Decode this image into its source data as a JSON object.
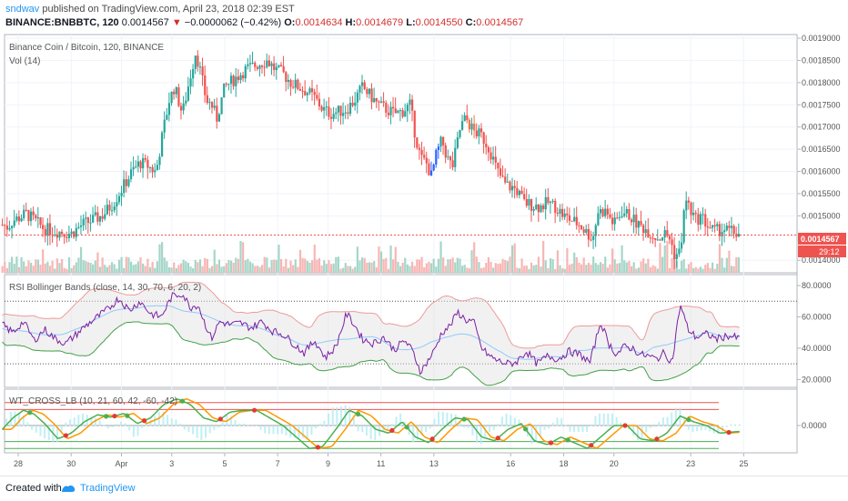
{
  "header": {
    "user": "sndwav",
    "published": " published on TradingView.com, April 23, 2018 02:39 EST",
    "symbol": "BINANCE:BNBBTC, 120",
    "last": "0.0014567",
    "change_arrow": "▼",
    "change": "−0.0000062 (−0.42%)",
    "o_label": "O:",
    "o": "0.0014634",
    "h_label": "H:",
    "h": "0.0014679",
    "l_label": "L:",
    "l": "0.0014550",
    "c_label": "C:",
    "c": "0.0014567"
  },
  "panes": {
    "main_title": "Binance Coin / Bitcoin, 120, BINANCE",
    "vol_title": "Vol (14)",
    "rsi_title": "RSI Bollinger Bands (close, 14, 30, 70, 6, 20, 2)",
    "wt_title": "WT_CROSS_LB (10, 21, 60, 42, -60, -42)",
    "price_tag": "0.0014567",
    "time_tag": "29:12"
  },
  "footer": {
    "created_with": "Created with",
    "brand": "TradingView"
  },
  "colors": {
    "up": "#26a69a",
    "down": "#ef5350",
    "blue_candle": "#2962ff",
    "orange_candle": "#ff7043",
    "rsi_line": "#7b1fa2",
    "bb_upper": "#ef9a9a",
    "bb_lower": "#43a047",
    "wt1": "#4caf50",
    "wt2": "#ff9800",
    "grid": "#f0f3fa"
  },
  "chart_data": [
    {
      "type": "candlestick",
      "pane": "main",
      "title": "Binance Coin / Bitcoin, 120, BINANCE",
      "x_tick_labels": [
        "28",
        "30",
        "Apr",
        "3",
        "5",
        "7",
        "9",
        "11",
        "13",
        "16",
        "18",
        "20",
        "23",
        "25"
      ],
      "y_tick_labels": [
        "0.0019000",
        "0.0018500",
        "0.0018000",
        "0.0017500",
        "0.0017000",
        "0.0016500",
        "0.0016000",
        "0.0015500",
        "0.0015000",
        "0.0014000"
      ],
      "ylim": [
        0.00138,
        0.0019
      ],
      "close_path": [
        [
          27.4,
          0.00148
        ],
        [
          27.6,
          0.001475
        ],
        [
          27.8,
          0.00149
        ],
        [
          28.0,
          0.001495
        ],
        [
          28.3,
          0.001505
        ],
        [
          28.6,
          0.00149
        ],
        [
          29.0,
          0.00147
        ],
        [
          29.5,
          0.001465
        ],
        [
          30.0,
          0.00146
        ],
        [
          30.4,
          0.00148
        ],
        [
          30.8,
          0.00149
        ],
        [
          31.2,
          0.001502
        ],
        [
          31.6,
          0.00153
        ],
        [
          32.0,
          0.00157
        ],
        [
          32.3,
          0.0016
        ],
        [
          32.6,
          0.00162
        ],
        [
          32.9,
          0.001612
        ],
        [
          33.2,
          0.001598
        ],
        [
          33.5,
          0.0017
        ],
        [
          33.7,
          0.00176
        ],
        [
          33.9,
          0.00179
        ],
        [
          34.2,
          0.00173
        ],
        [
          34.5,
          0.001815
        ],
        [
          34.7,
          0.00187
        ],
        [
          34.9,
          0.00182
        ],
        [
          35.1,
          0.00176
        ],
        [
          35.3,
          0.00175
        ],
        [
          35.5,
          0.00172
        ],
        [
          35.8,
          0.00179
        ],
        [
          36.2,
          0.00181
        ],
        [
          36.6,
          0.00183
        ],
        [
          37.0,
          0.00184
        ],
        [
          37.4,
          0.00185
        ],
        [
          37.7,
          0.00183
        ],
        [
          38.0,
          0.00182
        ],
        [
          38.3,
          0.0018
        ],
        [
          38.6,
          0.00179
        ],
        [
          38.9,
          0.00178
        ],
        [
          39.2,
          0.001765
        ],
        [
          39.5,
          0.00174
        ],
        [
          39.8,
          0.00173
        ],
        [
          40.1,
          0.001735
        ],
        [
          40.4,
          0.00174
        ],
        [
          40.7,
          0.00176
        ],
        [
          41.0,
          0.00179
        ],
        [
          41.3,
          0.00177
        ],
        [
          41.6,
          0.00175
        ],
        [
          41.9,
          0.00174
        ],
        [
          42.2,
          0.00173
        ],
        [
          42.5,
          0.001735
        ],
        [
          42.8,
          0.00175
        ],
        [
          43.0,
          0.00168
        ],
        [
          43.2,
          0.00163
        ],
        [
          43.4,
          0.00162
        ],
        [
          43.6,
          0.00159
        ],
        [
          43.8,
          0.00164
        ],
        [
          44.0,
          0.00167
        ],
        [
          44.2,
          0.00163
        ],
        [
          44.4,
          0.00161
        ],
        [
          44.7,
          0.0017
        ],
        [
          44.9,
          0.00172
        ],
        [
          45.2,
          0.00169
        ],
        [
          45.5,
          0.00168
        ],
        [
          45.8,
          0.00165
        ],
        [
          46.1,
          0.0016
        ],
        [
          46.4,
          0.00157
        ],
        [
          46.8,
          0.00156
        ],
        [
          47.1,
          0.00153
        ],
        [
          47.4,
          0.001525
        ],
        [
          47.7,
          0.00152
        ],
        [
          48.0,
          0.00153
        ],
        [
          48.3,
          0.00152
        ],
        [
          48.6,
          0.0015
        ],
        [
          48.9,
          0.00149
        ],
        [
          49.2,
          0.00148
        ],
        [
          49.5,
          0.00146
        ],
        [
          49.7,
          0.00145
        ],
        [
          49.9,
          0.00151
        ],
        [
          50.2,
          0.00151
        ],
        [
          50.5,
          0.00148
        ],
        [
          50.8,
          0.00151
        ],
        [
          51.1,
          0.0015
        ],
        [
          51.4,
          0.00148
        ],
        [
          51.7,
          0.00147
        ],
        [
          52.0,
          0.001455
        ],
        [
          52.2,
          0.00145
        ],
        [
          52.4,
          0.00146
        ],
        [
          52.6,
          0.00145
        ],
        [
          52.8,
          0.00141
        ],
        [
          53.0,
          0.00142
        ],
        [
          53.2,
          0.00154
        ],
        [
          53.4,
          0.00151
        ],
        [
          53.6,
          0.00149
        ],
        [
          53.8,
          0.0015
        ],
        [
          54.0,
          0.00148
        ],
        [
          54.3,
          0.001465
        ],
        [
          54.6,
          0.00147
        ],
        [
          55.0,
          0.001463
        ],
        [
          55.3,
          0.0014567
        ]
      ]
    },
    {
      "type": "bar",
      "pane": "main",
      "name": "Vol (14)",
      "note": "volume bars at bottom of main pane, no axis values shown"
    },
    {
      "type": "line",
      "pane": "rsi",
      "title": "RSI Bollinger Bands (close, 14, 30, 70, 6, 20, 2)",
      "y_tick_labels": [
        "80.0000",
        "60.0000",
        "40.0000",
        "20.0000"
      ],
      "ylim": [
        15,
        87
      ],
      "levels": [
        70,
        30
      ],
      "rsi": [
        [
          27.4,
          55
        ],
        [
          27.8,
          50
        ],
        [
          28.2,
          57
        ],
        [
          28.6,
          45
        ],
        [
          29.0,
          52
        ],
        [
          29.4,
          46
        ],
        [
          29.8,
          43
        ],
        [
          30.2,
          49
        ],
        [
          30.6,
          55
        ],
        [
          31.0,
          60
        ],
        [
          31.4,
          65
        ],
        [
          31.8,
          72
        ],
        [
          32.2,
          64
        ],
        [
          32.6,
          70
        ],
        [
          33.0,
          62
        ],
        [
          33.4,
          60
        ],
        [
          33.8,
          73
        ],
        [
          34.2,
          75
        ],
        [
          34.5,
          66
        ],
        [
          34.8,
          68
        ],
        [
          35.0,
          58
        ],
        [
          35.3,
          46
        ],
        [
          35.6,
          57
        ],
        [
          36.0,
          55
        ],
        [
          36.4,
          56
        ],
        [
          36.8,
          53
        ],
        [
          37.2,
          57
        ],
        [
          37.6,
          51
        ],
        [
          38.0,
          49
        ],
        [
          38.4,
          43
        ],
        [
          38.8,
          37
        ],
        [
          39.2,
          45
        ],
        [
          39.6,
          34
        ],
        [
          40.0,
          41
        ],
        [
          40.4,
          62
        ],
        [
          40.7,
          55
        ],
        [
          41.0,
          46
        ],
        [
          41.4,
          43
        ],
        [
          41.8,
          47
        ],
        [
          42.2,
          39
        ],
        [
          42.6,
          45
        ],
        [
          42.9,
          38
        ],
        [
          43.2,
          25
        ],
        [
          43.4,
          30
        ],
        [
          43.7,
          38
        ],
        [
          44.0,
          50
        ],
        [
          44.3,
          54
        ],
        [
          44.6,
          63
        ],
        [
          44.9,
          58
        ],
        [
          45.2,
          57
        ],
        [
          45.5,
          40
        ],
        [
          45.8,
          35
        ],
        [
          46.1,
          32
        ],
        [
          46.5,
          30
        ],
        [
          46.8,
          31
        ],
        [
          47.2,
          38
        ],
        [
          47.6,
          30
        ],
        [
          48.0,
          35
        ],
        [
          48.4,
          33
        ],
        [
          48.8,
          38
        ],
        [
          49.2,
          36
        ],
        [
          49.6,
          31
        ],
        [
          50.0,
          57
        ],
        [
          50.3,
          43
        ],
        [
          50.6,
          36
        ],
        [
          50.9,
          41
        ],
        [
          51.2,
          40
        ],
        [
          51.5,
          36
        ],
        [
          51.8,
          35
        ],
        [
          52.1,
          33
        ],
        [
          52.4,
          37
        ],
        [
          52.7,
          31
        ],
        [
          53.0,
          68
        ],
        [
          53.3,
          52
        ],
        [
          53.6,
          47
        ],
        [
          54.0,
          49
        ],
        [
          54.4,
          46
        ],
        [
          54.8,
          48
        ],
        [
          55.3,
          46
        ]
      ]
    },
    {
      "type": "line",
      "pane": "wt",
      "title": "WT_CROSS_LB (10, 21, 60, 42, -60, -42)",
      "y_tick_labels": [
        "0.0000"
      ],
      "levels": [
        60,
        42,
        -42,
        -60
      ],
      "series": [
        {
          "name": "",
          "values": [
            [
              27.4,
              -10
            ],
            [
              27.8,
              20
            ],
            [
              28.2,
              40
            ],
            [
              28.6,
              30
            ],
            [
              29.0,
              5
            ],
            [
              29.5,
              -35
            ],
            [
              30.0,
              -20
            ],
            [
              30.5,
              10
            ],
            [
              31.0,
              28
            ],
            [
              31.5,
              22
            ],
            [
              32.0,
              32
            ],
            [
              32.5,
              5
            ],
            [
              33.0,
              20
            ],
            [
              33.5,
              55
            ],
            [
              34.0,
              70
            ],
            [
              34.5,
              55
            ],
            [
              35.0,
              20
            ],
            [
              35.5,
              10
            ],
            [
              36.0,
              35
            ],
            [
              36.5,
              40
            ],
            [
              37.0,
              40
            ],
            [
              37.5,
              20
            ],
            [
              38.0,
              0
            ],
            [
              38.5,
              -30
            ],
            [
              39.0,
              -60
            ],
            [
              39.5,
              -55
            ],
            [
              40.0,
              -10
            ],
            [
              40.5,
              40
            ],
            [
              41.0,
              25
            ],
            [
              41.5,
              -10
            ],
            [
              42.0,
              -20
            ],
            [
              42.5,
              10
            ],
            [
              43.0,
              -30
            ],
            [
              43.5,
              -45
            ],
            [
              44.0,
              -10
            ],
            [
              44.5,
              20
            ],
            [
              45.0,
              15
            ],
            [
              45.5,
              -30
            ],
            [
              46.0,
              -40
            ],
            [
              46.5,
              -10
            ],
            [
              47.0,
              5
            ],
            [
              47.5,
              -40
            ],
            [
              48.0,
              -50
            ],
            [
              48.5,
              -30
            ],
            [
              49.0,
              -45
            ],
            [
              49.5,
              -60
            ],
            [
              50.0,
              -30
            ],
            [
              50.5,
              0
            ],
            [
              51.0,
              0
            ],
            [
              51.5,
              -35
            ],
            [
              52.0,
              -40
            ],
            [
              52.5,
              -20
            ],
            [
              53.0,
              25
            ],
            [
              53.5,
              10
            ],
            [
              54.0,
              0
            ],
            [
              54.5,
              -20
            ],
            [
              55.3,
              -15
            ]
          ]
        }
      ]
    }
  ]
}
